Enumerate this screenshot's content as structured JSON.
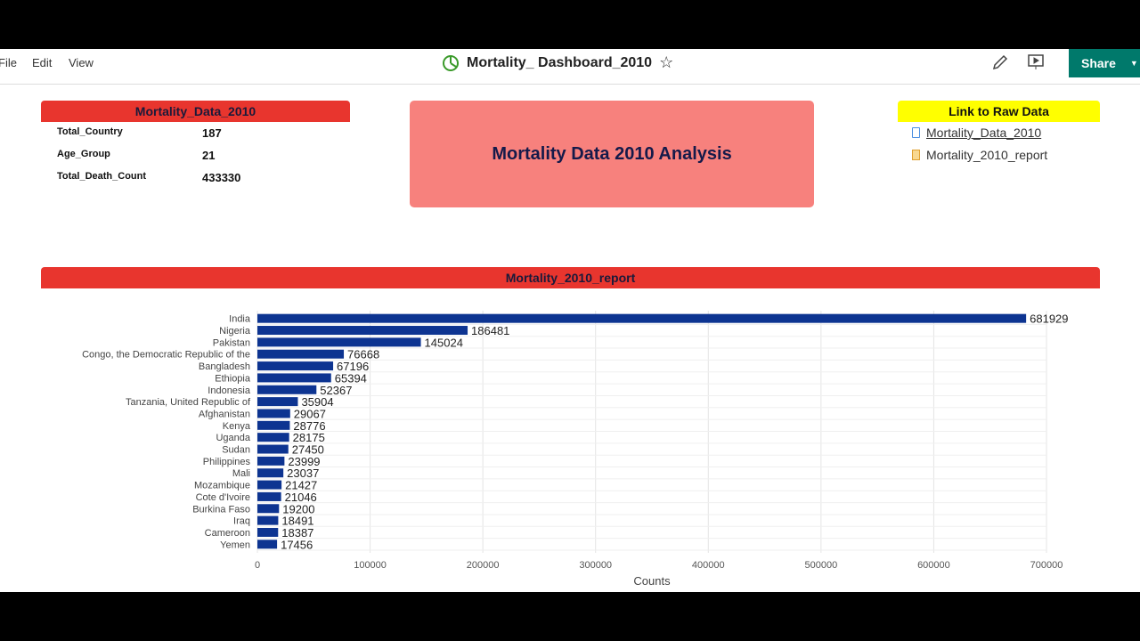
{
  "menu": [
    "File",
    "Edit",
    "View"
  ],
  "title": "Mortality_ Dashboard_2010",
  "share_label": "Share",
  "summary": {
    "header": "Mortality_Data_2010",
    "rows": [
      {
        "label": "Total_Country",
        "value": "187"
      },
      {
        "label": "Age_Group",
        "value": "21"
      },
      {
        "label": "Total_Death_Count",
        "value": "433330"
      }
    ]
  },
  "headline": "Mortality Data 2010 Analysis",
  "links": {
    "header": "Link to Raw Data",
    "items": [
      "Mortality_Data_2010",
      "Mortality_2010_report"
    ]
  },
  "report_header": "Mortality_2010_report",
  "colors": {
    "red": "#e8352e",
    "yellow": "#ffff00",
    "bar": "#0d3491",
    "share": "#00796b",
    "headline_bg": "#f7817d"
  },
  "chart_data": {
    "type": "bar",
    "orientation": "horizontal",
    "categories": [
      "India",
      "Nigeria",
      "Pakistan",
      "Congo, the Democratic Republic of the",
      "Bangladesh",
      "Ethiopia",
      "Indonesia",
      "Tanzania, United Republic of",
      "Afghanistan",
      "Kenya",
      "Uganda",
      "Sudan",
      "Philippines",
      "Mali",
      "Mozambique",
      "Cote d'Ivoire",
      "Burkina Faso",
      "Iraq",
      "Cameroon",
      "Yemen"
    ],
    "values": [
      681929,
      186481,
      145024,
      76668,
      67196,
      65394,
      52367,
      35904,
      29067,
      28776,
      28175,
      27450,
      23999,
      23037,
      21427,
      21046,
      19200,
      18491,
      18387,
      17456
    ],
    "xlabel": "Counts",
    "xlim": [
      0,
      700000
    ],
    "xticks": [
      0,
      100000,
      200000,
      300000,
      400000,
      500000,
      600000,
      700000
    ],
    "grid": true
  }
}
